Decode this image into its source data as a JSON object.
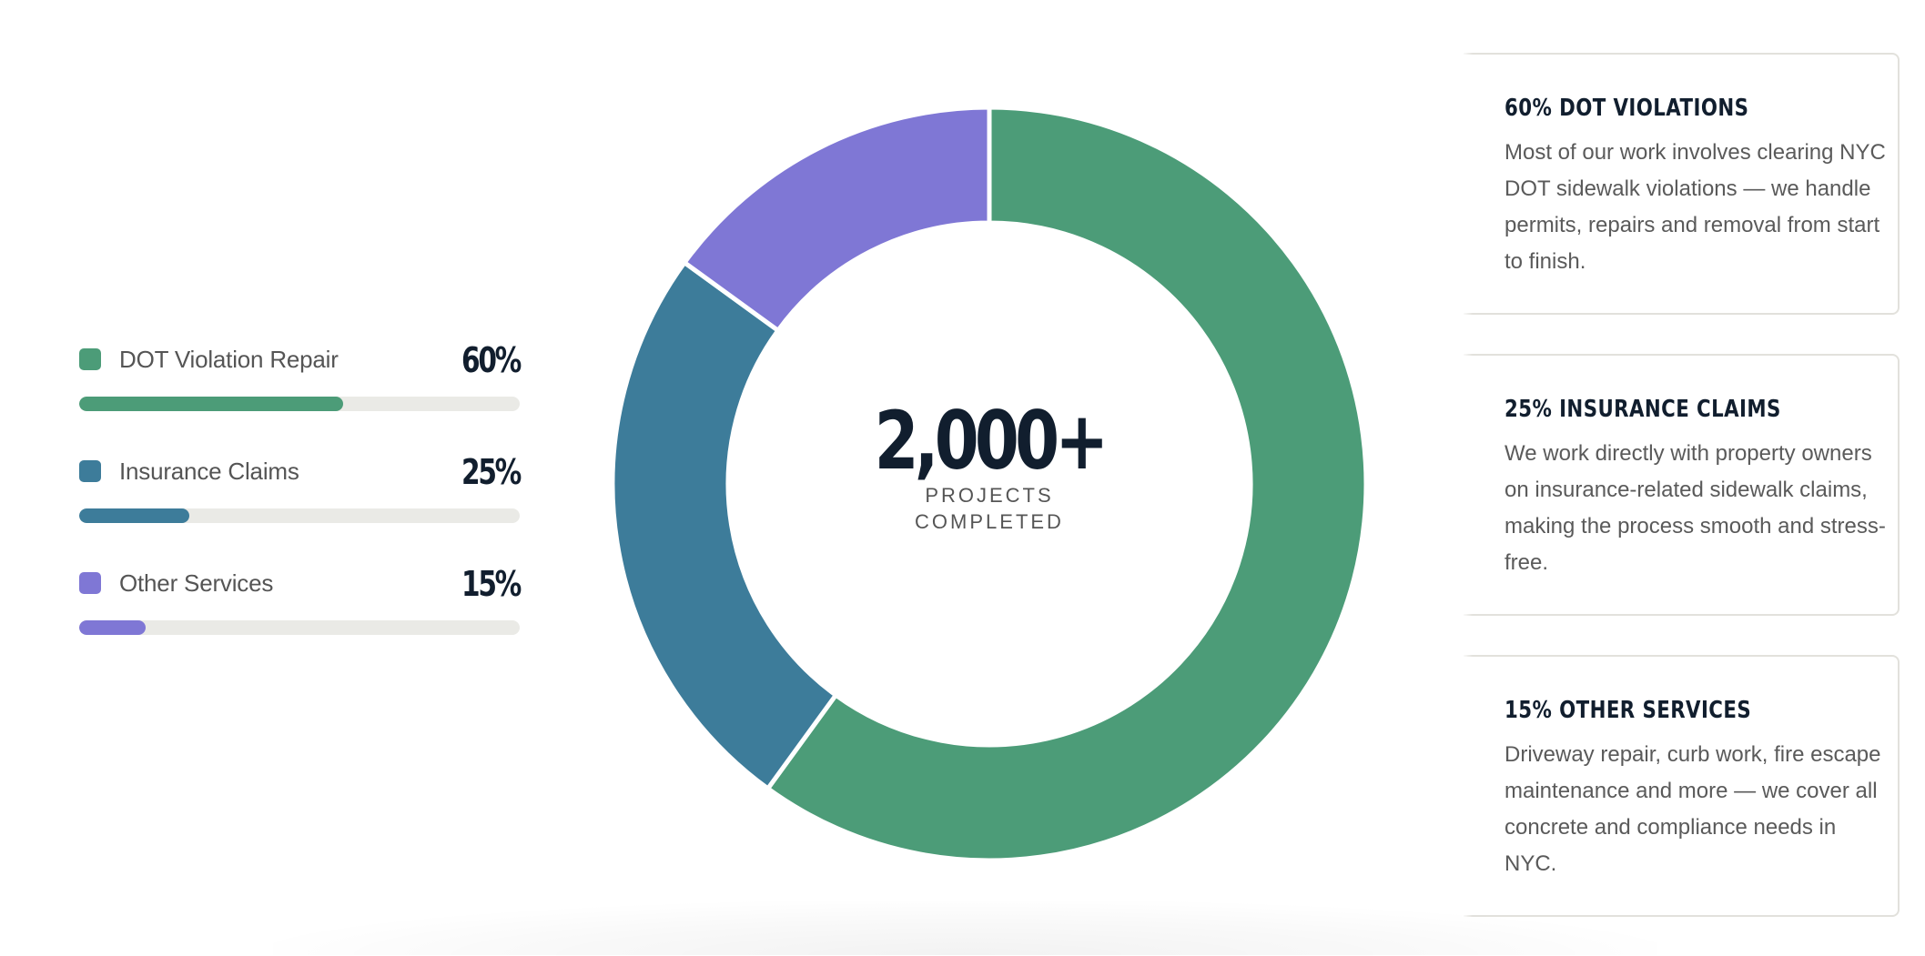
{
  "chart_data": {
    "type": "pie",
    "variant": "donut",
    "categories": [
      "DOT Violation Repair",
      "Insurance Claims",
      "Other Services"
    ],
    "values": [
      60,
      25,
      15
    ],
    "unit": "%",
    "colors": [
      "#4c9c78",
      "#3d7c9a",
      "#7f77d5"
    ],
    "center_value": "2,000+",
    "center_label": "PROJECTS COMPLETED",
    "start_angle": "top, clockwise",
    "legend_position": "left"
  },
  "legend": {
    "items": [
      {
        "label": "DOT Violation Repair",
        "percent": "60%",
        "value": 60,
        "color": "#4c9c78"
      },
      {
        "label": "Insurance Claims",
        "percent": "25%",
        "value": 25,
        "color": "#3d7c9a"
      },
      {
        "label": "Other Services",
        "percent": "15%",
        "value": 15,
        "color": "#7f77d5"
      }
    ],
    "track_color": "#eaeae6"
  },
  "donut": {
    "center_value": "2,000+",
    "center_label_line1": "PROJECTS",
    "center_label_line2": "COMPLETED"
  },
  "cards": [
    {
      "title": "60% DOT Violations",
      "body": "Most of our work involves clearing NYC DOT sidewalk violations — we handle permits, repairs and removal from start to finish."
    },
    {
      "title": "25% Insurance Claims",
      "body": "We work directly with property owners on insurance-related sidewalk claims, making the process smooth and stress-free."
    },
    {
      "title": "15% Other Services",
      "body": "Driveway repair, curb work, fire escape maintenance and more — we cover all concrete and compliance needs in NYC."
    }
  ],
  "colors": {
    "heading": "#111e2e",
    "body_text": "#5a5a5a",
    "card_border": "#e2e1dc"
  }
}
